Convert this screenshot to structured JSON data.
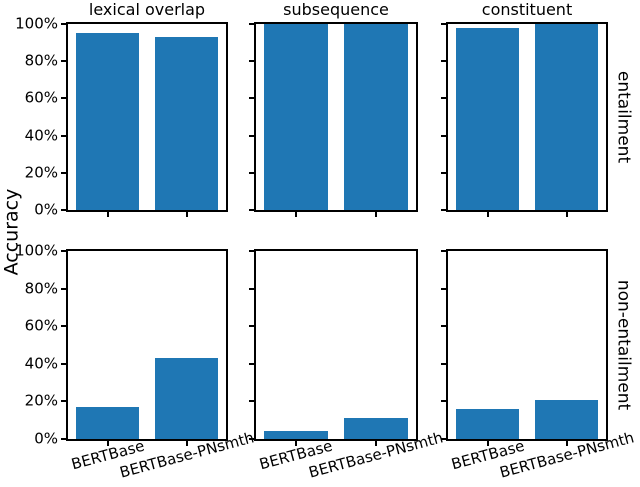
{
  "chart_data": {
    "type": "bar",
    "layout": "2x3 grid of subplots, shared axes styling",
    "title": "",
    "ylabel": "Accuracy",
    "categories": [
      "BERTBase",
      "BERTBase-PNsmth"
    ],
    "bar_color": "#1f77b4",
    "ylim": [
      0,
      100
    ],
    "yticks": [
      0,
      20,
      40,
      60,
      80,
      100
    ],
    "ytick_suffix": "%",
    "grid": false,
    "legend": "none",
    "col_titles": [
      "lexical overlap",
      "subsequence",
      "constituent"
    ],
    "row_labels": [
      "entailment",
      "non-entailment"
    ],
    "rows": [
      {
        "row_label": "entailment",
        "panels": [
          {
            "title": "lexical overlap",
            "values": [
              95,
              93
            ]
          },
          {
            "title": "subsequence",
            "values": [
              100,
              100
            ]
          },
          {
            "title": "constituent",
            "values": [
              98,
              100
            ]
          }
        ]
      },
      {
        "row_label": "non-entailment",
        "panels": [
          {
            "title": "lexical overlap",
            "values": [
              17,
              43
            ]
          },
          {
            "title": "subsequence",
            "values": [
              4,
              11
            ]
          },
          {
            "title": "constituent",
            "values": [
              16,
              21
            ]
          }
        ]
      }
    ]
  }
}
